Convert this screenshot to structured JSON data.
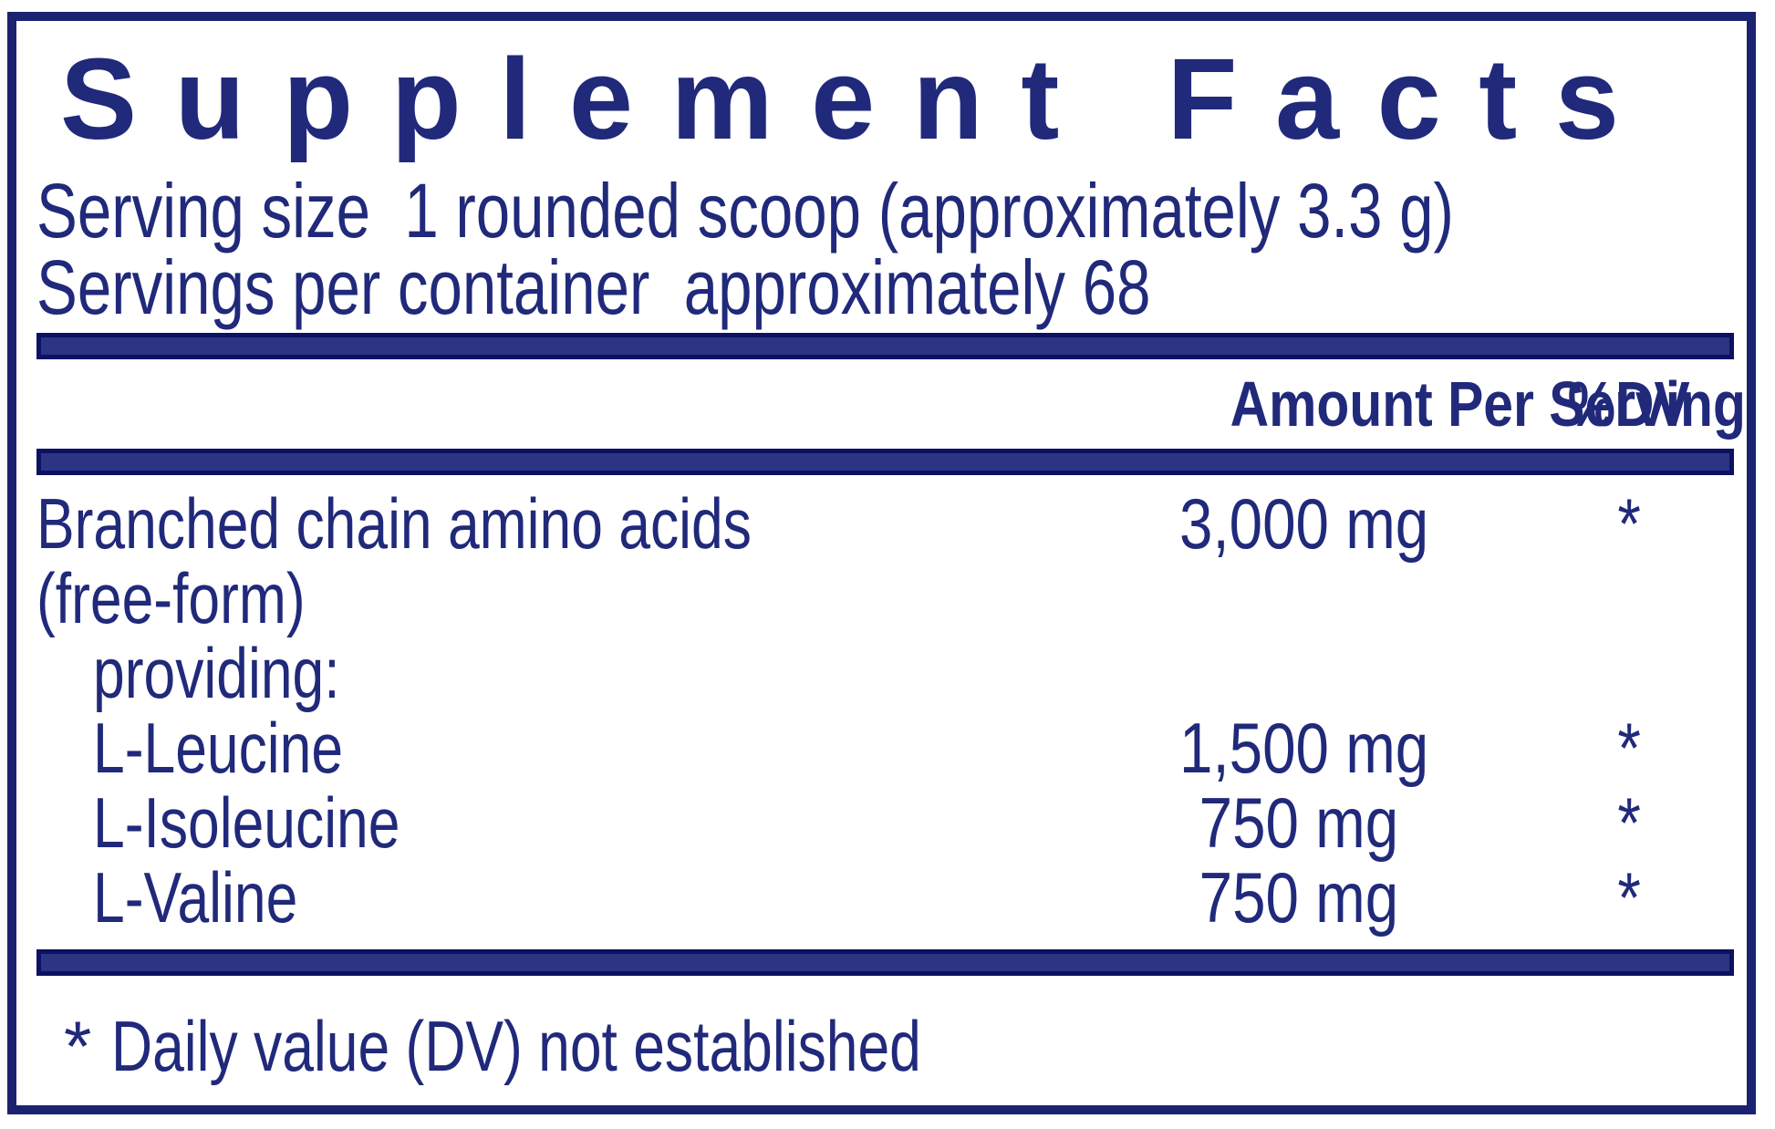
{
  "title": "Supplement Facts",
  "serving": {
    "line1": "Serving size  1 rounded scoop (approximately 3.3 g)",
    "line2": "Servings per container  approximately 68"
  },
  "table": {
    "headers": {
      "amount": "Amount Per Serving",
      "dv": "%DV"
    },
    "rows": [
      {
        "name": "Branched chain amino acids",
        "name2": "(free-form)",
        "amount": "3,000 mg",
        "dv": "*"
      },
      {
        "name": "providing:",
        "amount": "",
        "dv": ""
      },
      {
        "name": "L-Leucine",
        "amount": "1,500 mg",
        "dv": "*"
      },
      {
        "name": "L-Isoleucine",
        "amount": "750 mg",
        "dv": "*"
      },
      {
        "name": "L-Valine",
        "amount": "750 mg",
        "dv": "*"
      }
    ]
  },
  "footnote": {
    "marker": "*",
    "text": "Daily value (DV) not established"
  },
  "colors": {
    "text_navy": "#20297a",
    "bar_fill": "#2c3584",
    "bar_outline": "#0d1162",
    "label_border": "#1b2270",
    "background": "#ffffff"
  }
}
